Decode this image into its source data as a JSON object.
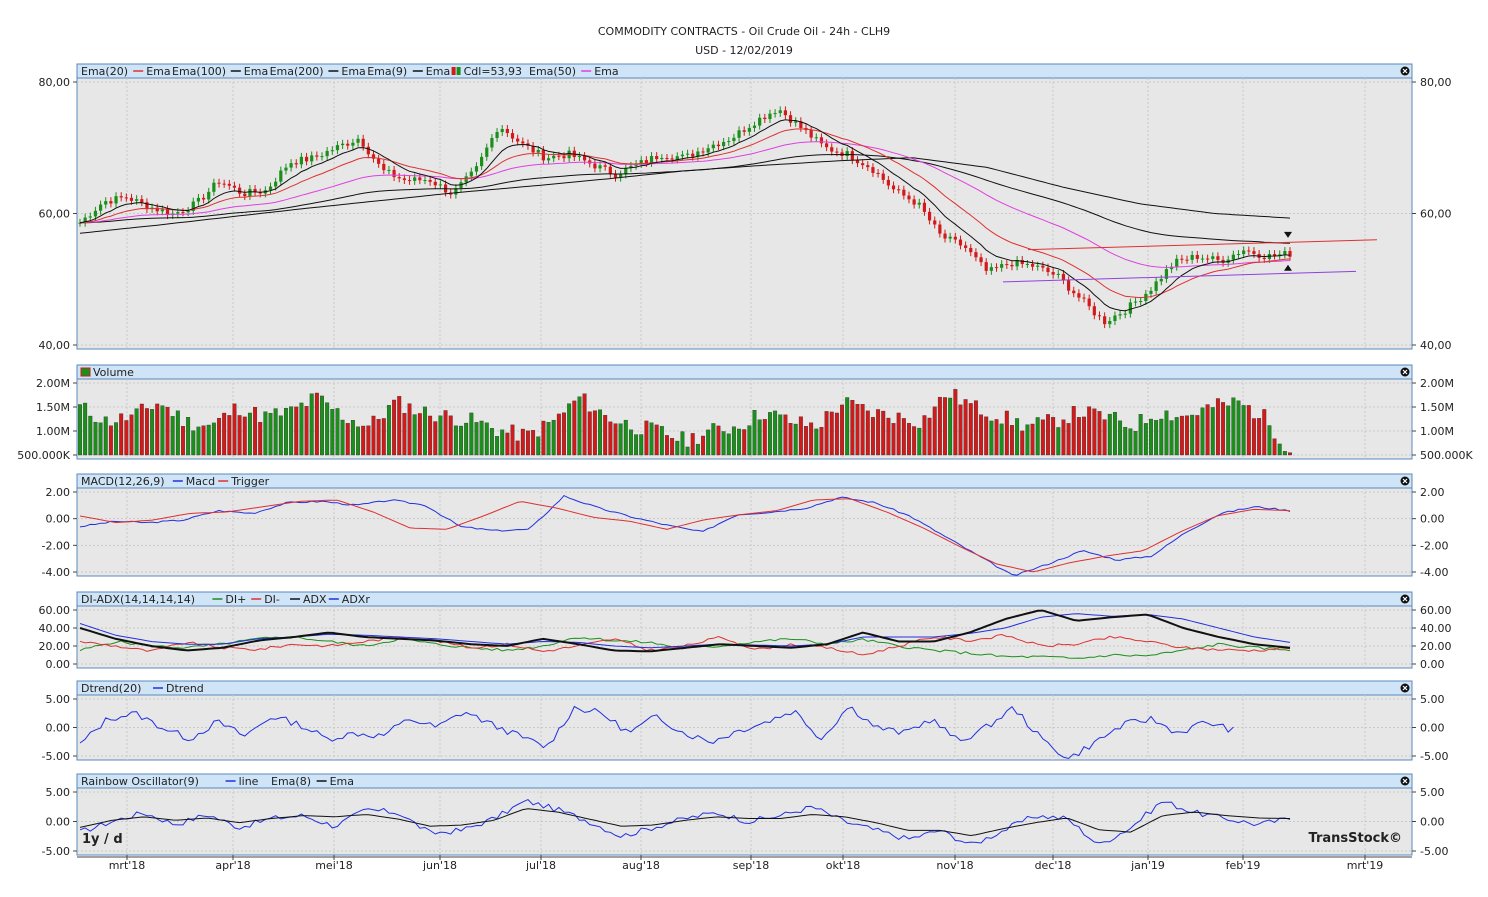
{
  "header": {
    "title": "COMMODITY CONTRACTS - Oil Crude Oil - 24h - CLH9",
    "subtitle": "USD - 12/02/2019"
  },
  "footer": {
    "period_label": "1y / d",
    "brand": "TransStock©"
  },
  "x_axis_labels": [
    "mrt'18",
    "apr'18",
    "mei'18",
    "jun'18",
    "jul'18",
    "aug'18",
    "sep'18",
    "okt'18",
    "nov'18",
    "dec'18",
    "jan'19",
    "feb'19",
    "mrt'19"
  ],
  "colors": {
    "panel_header": "#cfe4f6",
    "panel_border": "#5a88bb",
    "plot_bg": "#e7e7e7",
    "up_candle": "#1a8f1a",
    "down_candle": "#d21a1a",
    "ema20": "#e03030",
    "ema100": "#111111",
    "ema200": "#111111",
    "ema9": "#111111",
    "ema50": "#e040e0",
    "blue": "#2030e0",
    "green": "#1a8f1a"
  },
  "panels": [
    {
      "id": "price",
      "legend": [
        {
          "text": "Ema(20)",
          "kind": "label"
        },
        {
          "text": "Ema",
          "kind": "line",
          "color": "#e03030"
        },
        {
          "text": "Ema(100)",
          "kind": "label"
        },
        {
          "text": "Ema",
          "kind": "line",
          "color": "#111111"
        },
        {
          "text": "Ema(200)",
          "kind": "label"
        },
        {
          "text": "Ema",
          "kind": "line",
          "color": "#111111"
        },
        {
          "text": "Ema(9)",
          "kind": "label"
        },
        {
          "text": "Ema",
          "kind": "line",
          "color": "#111111"
        },
        {
          "text": "Cdl=53,93",
          "kind": "candle"
        },
        {
          "text": "Ema(50)",
          "kind": "label"
        },
        {
          "text": "Ema",
          "kind": "line",
          "color": "#e040e0"
        }
      ],
      "y_ticks": [
        "80,00",
        "60,00",
        "40,00"
      ],
      "y_values": [
        80,
        60,
        40
      ],
      "ylim": [
        40,
        80
      ]
    },
    {
      "id": "volume",
      "legend": [
        {
          "text": "Volume",
          "kind": "volume"
        }
      ],
      "y_ticks": [
        "2.00M",
        "1.50M",
        "1.00M",
        "500.000K"
      ],
      "y_values": [
        2000000,
        1500000,
        1000000,
        500000
      ],
      "ylim": [
        500000,
        2000000
      ]
    },
    {
      "id": "macd",
      "legend": [
        {
          "text": "MACD(12,26,9)",
          "kind": "label"
        },
        {
          "text": "Macd",
          "kind": "line",
          "color": "#2030e0"
        },
        {
          "text": "Trigger",
          "kind": "line",
          "color": "#e03030"
        }
      ],
      "y_ticks": [
        "2.00",
        "0.00",
        "-2.00",
        "-4.00"
      ],
      "y_values": [
        2,
        0,
        -2,
        -4
      ],
      "ylim": [
        -4,
        2
      ]
    },
    {
      "id": "adx",
      "legend": [
        {
          "text": "DI-ADX(14,14,14,14)",
          "kind": "label"
        },
        {
          "text": "DI+",
          "kind": "line",
          "color": "#1a8f1a"
        },
        {
          "text": "DI-",
          "kind": "line",
          "color": "#e03030"
        },
        {
          "text": "ADX",
          "kind": "line",
          "color": "#111111"
        },
        {
          "text": "ADXr",
          "kind": "line",
          "color": "#2030e0"
        }
      ],
      "y_ticks": [
        "60.00",
        "40.00",
        "20.00",
        "0.00"
      ],
      "y_values": [
        60,
        40,
        20,
        0
      ],
      "ylim": [
        0,
        60
      ]
    },
    {
      "id": "dtrend",
      "legend": [
        {
          "text": "Dtrend(20)",
          "kind": "label"
        },
        {
          "text": "Dtrend",
          "kind": "line",
          "color": "#2030e0"
        }
      ],
      "y_ticks": [
        "5.00",
        "0.00",
        "-5.00"
      ],
      "y_values": [
        5,
        0,
        -5
      ],
      "ylim": [
        -5,
        5
      ]
    },
    {
      "id": "rainbow",
      "legend": [
        {
          "text": "Rainbow Oscillator(9)",
          "kind": "label"
        },
        {
          "text": "line",
          "kind": "line",
          "color": "#2030e0"
        },
        {
          "text": "Ema(8)",
          "kind": "label"
        },
        {
          "text": "Ema",
          "kind": "line",
          "color": "#111111"
        }
      ],
      "y_ticks": [
        "5.00",
        "0.00",
        "-5.00"
      ],
      "y_values": [
        5,
        0,
        -5
      ],
      "ylim": [
        -5,
        5
      ]
    }
  ],
  "chart_data": {
    "type": "line",
    "title": "COMMODITY CONTRACTS - Oil Crude Oil - 24h - CLH9",
    "subtitle": "USD - 12/02/2019",
    "x_months": [
      "mrt'18",
      "apr'18",
      "mei'18",
      "jun'18",
      "jul'18",
      "aug'18",
      "sep'18",
      "okt'18",
      "nov'18",
      "dec'18",
      "jan'19",
      "feb'19",
      "mrt'19"
    ],
    "last_close": 53.93,
    "price_close_keypoints": [
      58.6,
      61.8,
      62.5,
      61.0,
      59.9,
      61.5,
      65.0,
      63.0,
      63.5,
      67.8,
      68.4,
      70.0,
      71.5,
      66.5,
      65.0,
      65.2,
      63.0,
      66.5,
      73.5,
      70.5,
      68.5,
      69.0,
      67.5,
      66.0,
      67.5,
      69.0,
      68.5,
      70.2,
      71.5,
      74.0,
      76.0,
      73.0,
      70.0,
      69.0,
      67.0,
      63.5,
      61.5,
      56.5,
      55.0,
      51.0,
      52.5,
      52.0,
      50.5,
      47.0,
      43.5,
      45.5,
      48.5,
      52.5,
      53.5,
      52.8,
      54.5,
      53.5,
      53.9
    ],
    "ema200_keypoints": [
      57.0,
      58.2,
      59.5,
      60.8,
      62.0,
      63.2,
      64.2,
      65.3,
      66.5,
      67.3,
      68.0,
      68.5,
      67.0,
      64.0,
      61.5,
      60.0,
      59.3
    ],
    "volume_keypoints_M": [
      1.5,
      1.2,
      1.3,
      1.6,
      1.2,
      1.1,
      1.5,
      1.3,
      1.4,
      1.7,
      1.3,
      1.1,
      1.6,
      1.4,
      1.3,
      1.2,
      1.0,
      0.9,
      1.2,
      1.7,
      1.3,
      1.1,
      1.0,
      0.8,
      1.0,
      1.1,
      1.4,
      1.2,
      1.1,
      1.6,
      1.4,
      1.3,
      1.2,
      1.8,
      1.5,
      1.3,
      1.1,
      1.2,
      1.4,
      1.3,
      1.1,
      1.4,
      1.3,
      1.5,
      1.6,
      1.3,
      0.6
    ],
    "macd_keypoints": [
      -0.6,
      -0.2,
      -0.3,
      -0.1,
      0.6,
      0.4,
      1.2,
      1.3,
      1.0,
      1.4,
      1.0,
      -0.6,
      -0.9,
      -0.8,
      1.7,
      0.8,
      0.1,
      -0.5,
      -1.0,
      0.3,
      0.5,
      0.8,
      1.6,
      1.2,
      0.2,
      -1.3,
      -2.8,
      -4.3,
      -3.4,
      -2.4,
      -3.1,
      -2.8,
      -1.0,
      0.4,
      0.9,
      0.6
    ],
    "trigger_keypoints": [
      0.2,
      -0.3,
      -0.1,
      0.4,
      0.5,
      0.9,
      1.3,
      1.4,
      0.5,
      -0.7,
      -0.8,
      0.2,
      1.3,
      0.8,
      0.1,
      -0.2,
      -0.8,
      -0.1,
      0.3,
      0.6,
      1.4,
      1.5,
      0.5,
      -0.7,
      -2.1,
      -3.4,
      -4.0,
      -3.3,
      -2.8,
      -2.4,
      -1.0,
      0.2,
      0.7,
      0.6
    ],
    "di_plus_keypoints": [
      15,
      25,
      20,
      18,
      22,
      28,
      30,
      25,
      20,
      28,
      22,
      18,
      15,
      20,
      30,
      26,
      24,
      17,
      20,
      25,
      28,
      22,
      27,
      20,
      15,
      12,
      8,
      8,
      6,
      10,
      9,
      15,
      22,
      18,
      16
    ],
    "di_minus_keypoints": [
      25,
      20,
      14,
      24,
      18,
      16,
      22,
      20,
      25,
      30,
      26,
      18,
      22,
      14,
      20,
      28,
      15,
      20,
      30,
      16,
      22,
      18,
      10,
      20,
      30,
      26,
      32,
      20,
      22,
      30,
      25,
      18,
      16,
      15,
      18
    ],
    "adx_keypoints": [
      40,
      28,
      20,
      15,
      18,
      26,
      30,
      35,
      30,
      28,
      26,
      22,
      20,
      28,
      22,
      15,
      14,
      18,
      22,
      20,
      18,
      22,
      35,
      25,
      25,
      35,
      50,
      60,
      48,
      52,
      55,
      40,
      30,
      22,
      18
    ],
    "adxr_keypoints": [
      45,
      32,
      25,
      22,
      22,
      28,
      30,
      33,
      32,
      30,
      28,
      25,
      22,
      25,
      24,
      20,
      18,
      20,
      22,
      21,
      20,
      22,
      30,
      30,
      30,
      34,
      40,
      52,
      56,
      53,
      55,
      50,
      40,
      30,
      24
    ],
    "dtrend_keypoints": [
      -3.0,
      1.5,
      2.5,
      0.0,
      -2.0,
      1.0,
      -1.5,
      2.0,
      0.5,
      -2.0,
      -1.0,
      -1.5,
      1.5,
      0.0,
      2.8,
      0.5,
      -1.5,
      -3.5,
      3.5,
      2.5,
      -1.0,
      2.0,
      -1.0,
      -2.5,
      -0.5,
      1.0,
      3.0,
      -2.0,
      3.8,
      0.0,
      -1.0,
      1.5,
      -2.5,
      0.0,
      3.5,
      -2.0,
      -5.5,
      -2.5,
      0.5,
      1.5,
      -1.0,
      1.0,
      -0.5
    ],
    "rainbow_line_keypoints": [
      -1.8,
      0.0,
      1.5,
      -0.5,
      1.2,
      -1.0,
      0.5,
      1.0,
      -0.8,
      2.0,
      1.5,
      -2.0,
      -1.5,
      0.5,
      3.5,
      2.0,
      0.0,
      -2.5,
      -1.0,
      0.5,
      1.5,
      0.0,
      1.0,
      2.5,
      0.0,
      -1.5,
      -3.0,
      -1.5,
      -4.0,
      -1.5,
      1.0,
      0.5,
      -4.0,
      -1.0,
      3.5,
      1.5,
      0.5,
      -0.5,
      0.5
    ],
    "rainbow_ema_keypoints": [
      -1.0,
      0.2,
      0.8,
      0.2,
      0.6,
      -0.2,
      0.5,
      1.0,
      0.8,
      1.2,
      0.4,
      -0.8,
      -0.6,
      0.2,
      2.2,
      1.6,
      0.4,
      -0.8,
      -0.6,
      0.2,
      0.8,
      0.5,
      0.5,
      1.2,
      0.8,
      -0.2,
      -1.5,
      -1.5,
      -2.4,
      -1.2,
      -0.2,
      0.6,
      -1.4,
      -1.8,
      1.0,
      1.6,
      1.0,
      0.6,
      0.5
    ],
    "grid": true,
    "legend_position": "top-left"
  }
}
